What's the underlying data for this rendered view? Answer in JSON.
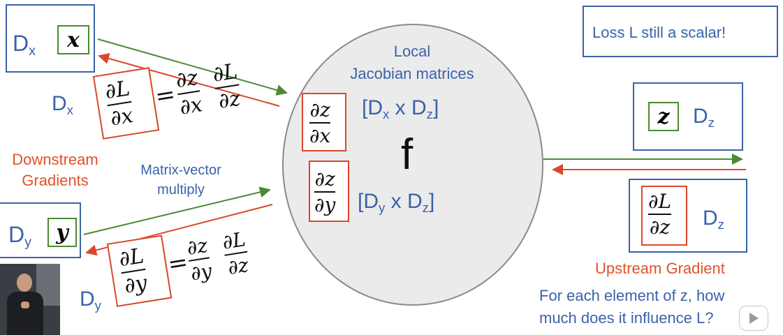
{
  "left": {
    "dx_box": {
      "label": "D",
      "sub": "x",
      "var": "x"
    },
    "dx_label": {
      "label": "D",
      "sub": "x"
    },
    "grad_x": {
      "lhs_num": "∂L",
      "lhs_den": "∂x",
      "eq": "=",
      "r1_num": "∂z",
      "r1_den": "∂x",
      "r2_num": "∂L",
      "r2_den": "∂z"
    },
    "downstream": {
      "line1": "Downstream",
      "line2": "Gradients"
    },
    "matvec": {
      "line1": "Matrix-vector",
      "line2": "multiply"
    },
    "dy_box": {
      "label": "D",
      "sub": "y",
      "var": "y"
    },
    "dy_label": {
      "label": "D",
      "sub": "y"
    },
    "grad_y": {
      "lhs_num": "∂L",
      "lhs_den": "∂y",
      "eq": "=",
      "r1_num": "∂z",
      "r1_den": "∂y",
      "r2_num": "∂L",
      "r2_den": "∂z"
    }
  },
  "center": {
    "title_line1": "Local",
    "title_line2": "Jacobian matrices",
    "f": "f",
    "jac_x": {
      "num": "∂z",
      "den": "∂x",
      "dim_open": "[D",
      "dim_sub1": "x",
      "dim_mid": " x D",
      "dim_sub2": "z",
      "dim_close": "]"
    },
    "jac_y": {
      "num": "∂z",
      "den": "∂y",
      "dim_open": "[D",
      "dim_sub1": "y",
      "dim_mid": " x D",
      "dim_sub2": "z",
      "dim_close": "]"
    }
  },
  "right": {
    "loss_note": "Loss L still a scalar!",
    "dz_box": {
      "var": "z",
      "label": "D",
      "sub": "z"
    },
    "upstream_box": {
      "num": "∂L",
      "den": "∂z",
      "label": "D",
      "sub": "z"
    },
    "upstream_label": "Upstream Gradient",
    "question_line1": "For each element of z, how",
    "question_line2": "much does it influence L?"
  },
  "colors": {
    "blue": "#3a63a8",
    "green": "#4a8a32",
    "red": "#d9472b",
    "orange": "#e0522b"
  }
}
